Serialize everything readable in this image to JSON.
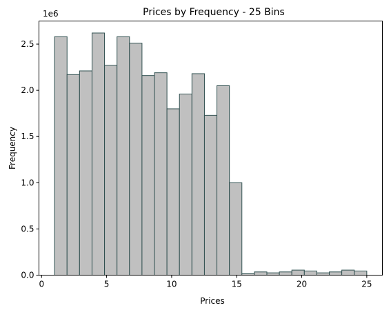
{
  "chart_data": {
    "type": "bar",
    "title": "Prices by Frequency - 25 Bins",
    "xlabel": "Prices",
    "ylabel": "Frequency",
    "y_offset_label": "1e6",
    "xlim": [
      -0.2,
      26.2
    ],
    "ylim": [
      0,
      2750000
    ],
    "xticks": [
      0,
      5,
      10,
      15,
      20,
      25
    ],
    "xtick_labels": [
      "0",
      "5",
      "10",
      "15",
      "20",
      "25"
    ],
    "yticks": [
      0,
      500000,
      1000000,
      1500000,
      2000000,
      2500000
    ],
    "ytick_labels": [
      "0.0",
      "0.5",
      "1.0",
      "1.5",
      "2.0",
      "2.5"
    ],
    "bins": {
      "start": 1,
      "end": 25,
      "count": 25
    },
    "values": [
      2580000,
      2170000,
      2210000,
      2620000,
      2270000,
      2580000,
      2510000,
      2160000,
      2190000,
      1800000,
      1960000,
      2180000,
      1730000,
      2050000,
      1000000,
      15000,
      35000,
      25000,
      35000,
      55000,
      45000,
      25000,
      35000,
      55000,
      45000
    ],
    "bar_fill": "#c0c0c0",
    "bar_edge": "#2f4f4f",
    "grid": false,
    "legend": "none"
  }
}
